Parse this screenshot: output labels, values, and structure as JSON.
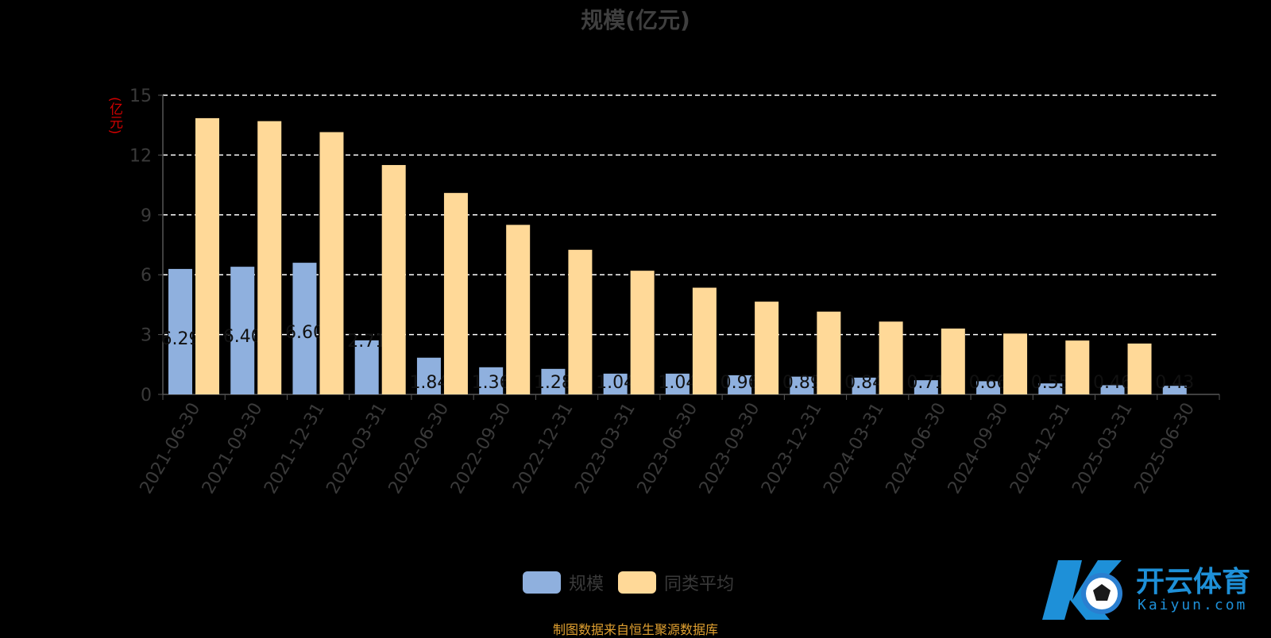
{
  "title": "规模(亿元)",
  "footer": "制图数据来自恒生聚源数据库",
  "watermark": {
    "main": "开云体育",
    "sub": "Kaiyun.com"
  },
  "colors": {
    "scale": "#8fb0de",
    "avg": "#ffd998",
    "grid": "#ffffff",
    "axis": "#555555",
    "tick": "#3a3a3a",
    "ylabel": "#d00000",
    "footer": "#e0a030"
  },
  "chart_data": {
    "type": "bar",
    "ylabel": "(亿元)",
    "ylim": [
      0,
      15
    ],
    "yticks": [
      0,
      3,
      6,
      9,
      12,
      15
    ],
    "grid": true,
    "legend_position": "bottom-center",
    "categories": [
      "2021-06-30",
      "2021-09-30",
      "2021-12-31",
      "2022-03-31",
      "2022-06-30",
      "2022-09-30",
      "2022-12-31",
      "2023-03-31",
      "2023-06-30",
      "2023-09-30",
      "2023-12-31",
      "2024-03-31",
      "2024-06-30",
      "2024-09-30",
      "2024-12-31",
      "2025-03-31",
      "2025-06-30"
    ],
    "series": [
      {
        "name": "规模",
        "values": [
          6.29,
          6.4,
          6.6,
          2.71,
          1.84,
          1.36,
          1.28,
          1.04,
          1.04,
          0.96,
          0.89,
          0.84,
          0.71,
          0.66,
          0.55,
          0.46,
          0.43
        ],
        "show_labels": true
      },
      {
        "name": "同类平均",
        "values": [
          13.85,
          13.7,
          13.15,
          11.5,
          10.1,
          8.5,
          7.25,
          6.2,
          5.35,
          4.65,
          4.15,
          3.65,
          3.3,
          3.05,
          2.7,
          2.55,
          null
        ]
      }
    ]
  }
}
